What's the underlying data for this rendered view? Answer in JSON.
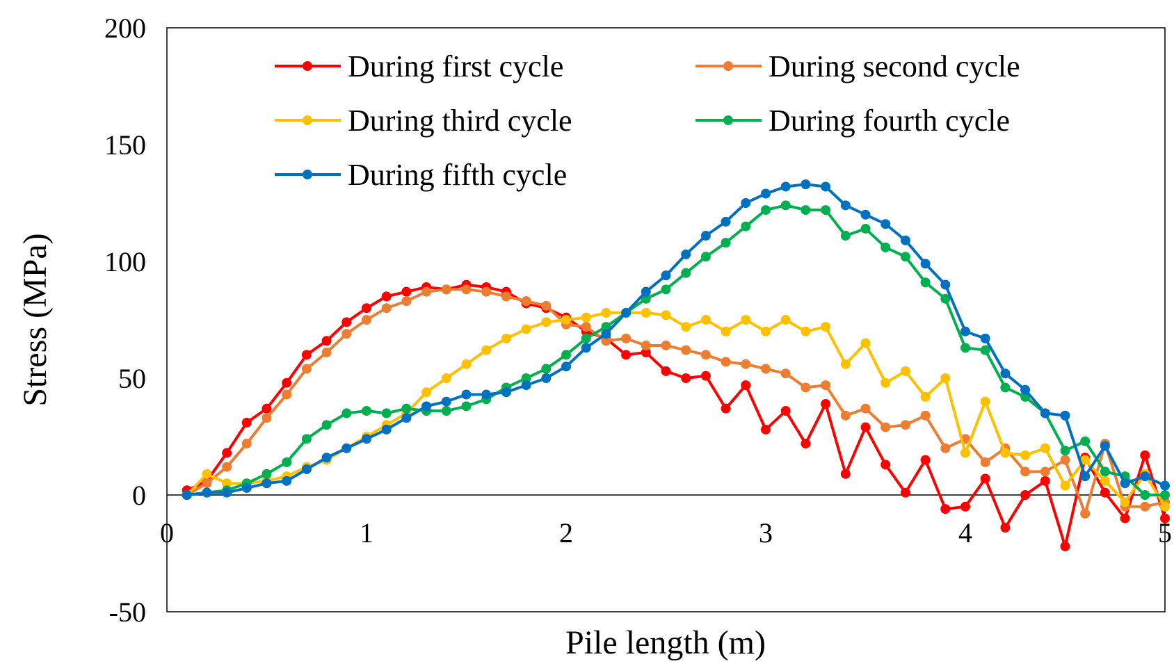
{
  "chart_data": {
    "type": "line",
    "title": "",
    "xlabel": "Pile length (m)",
    "ylabel": "Stress (MPa)",
    "xlim": [
      0,
      5
    ],
    "ylim": [
      -50,
      200
    ],
    "grid": false,
    "legend_position": "top-left",
    "x_ticks": [
      "0",
      "1",
      "2",
      "3",
      "4",
      "5"
    ],
    "y_ticks": [
      "-50",
      "0",
      "50",
      "100",
      "150",
      "200"
    ],
    "x": [
      0.1,
      0.2,
      0.3,
      0.4,
      0.5,
      0.6,
      0.7,
      0.8,
      0.9,
      1.0,
      1.1,
      1.2,
      1.3,
      1.4,
      1.5,
      1.6,
      1.7,
      1.8,
      1.9,
      2.0,
      2.1,
      2.2,
      2.3,
      2.4,
      2.5,
      2.6,
      2.7,
      2.8,
      2.9,
      3.0,
      3.1,
      3.2,
      3.3,
      3.4,
      3.5,
      3.6,
      3.7,
      3.8,
      3.9,
      4.0,
      4.1,
      4.2,
      4.3,
      4.4,
      4.5,
      4.6,
      4.7,
      4.8,
      4.9,
      5.0
    ],
    "series": [
      {
        "name": "During first cycle",
        "color": "#ff0000",
        "values": [
          2,
          6,
          18,
          31,
          37,
          48,
          60,
          66,
          74,
          80,
          85,
          87,
          89,
          88,
          90,
          89,
          87,
          82,
          80,
          76,
          70,
          67,
          60,
          61,
          53,
          50,
          51,
          37,
          47,
          28,
          36,
          22,
          39,
          9,
          29,
          13,
          1,
          15,
          -6,
          -5,
          7,
          -14,
          0,
          6,
          -22,
          16,
          1,
          -10,
          17,
          -10
        ]
      },
      {
        "name": "During second cycle",
        "color": "#ed7d31",
        "values": [
          0,
          5,
          12,
          22,
          33,
          43,
          54,
          61,
          69,
          75,
          80,
          83,
          87,
          88,
          88,
          87,
          85,
          83,
          81,
          73,
          72,
          66,
          67,
          64,
          64,
          62,
          60,
          57,
          56,
          54,
          52,
          46,
          47,
          34,
          37,
          29,
          30,
          34,
          20,
          24,
          14,
          20,
          10,
          10,
          15,
          -8,
          22,
          -5,
          -5,
          -3
        ]
      },
      {
        "name": "During third cycle",
        "color": "#ffc000",
        "values": [
          0,
          9,
          5,
          5,
          6,
          8,
          12,
          15,
          20,
          25,
          30,
          35,
          44,
          50,
          56,
          62,
          67,
          71,
          74,
          75,
          76,
          78,
          78,
          78,
          77,
          72,
          75,
          70,
          75,
          70,
          75,
          70,
          72,
          56,
          65,
          48,
          53,
          42,
          50,
          18,
          40,
          18,
          17,
          20,
          4,
          15,
          6,
          -3,
          9,
          -5
        ]
      },
      {
        "name": "During fourth cycle",
        "color": "#00b050",
        "values": [
          0,
          1,
          2,
          5,
          9,
          14,
          24,
          30,
          35,
          36,
          35,
          37,
          36,
          36,
          38,
          41,
          46,
          50,
          54,
          60,
          67,
          72,
          78,
          84,
          88,
          95,
          102,
          108,
          115,
          122,
          124,
          122,
          122,
          111,
          114,
          106,
          102,
          91,
          84,
          63,
          62,
          46,
          42,
          35,
          19,
          23,
          10,
          8,
          0,
          0
        ]
      },
      {
        "name": "During fifth cycle",
        "color": "#0070c0",
        "values": [
          0,
          1,
          1,
          3,
          5,
          6,
          11,
          16,
          20,
          24,
          28,
          33,
          38,
          40,
          43,
          43,
          44,
          47,
          50,
          55,
          63,
          69,
          78,
          87,
          94,
          103,
          111,
          117,
          125,
          129,
          132,
          133,
          132,
          124,
          120,
          116,
          109,
          99,
          90,
          70,
          67,
          52,
          45,
          35,
          34,
          8,
          21,
          5,
          8,
          4
        ]
      }
    ]
  }
}
